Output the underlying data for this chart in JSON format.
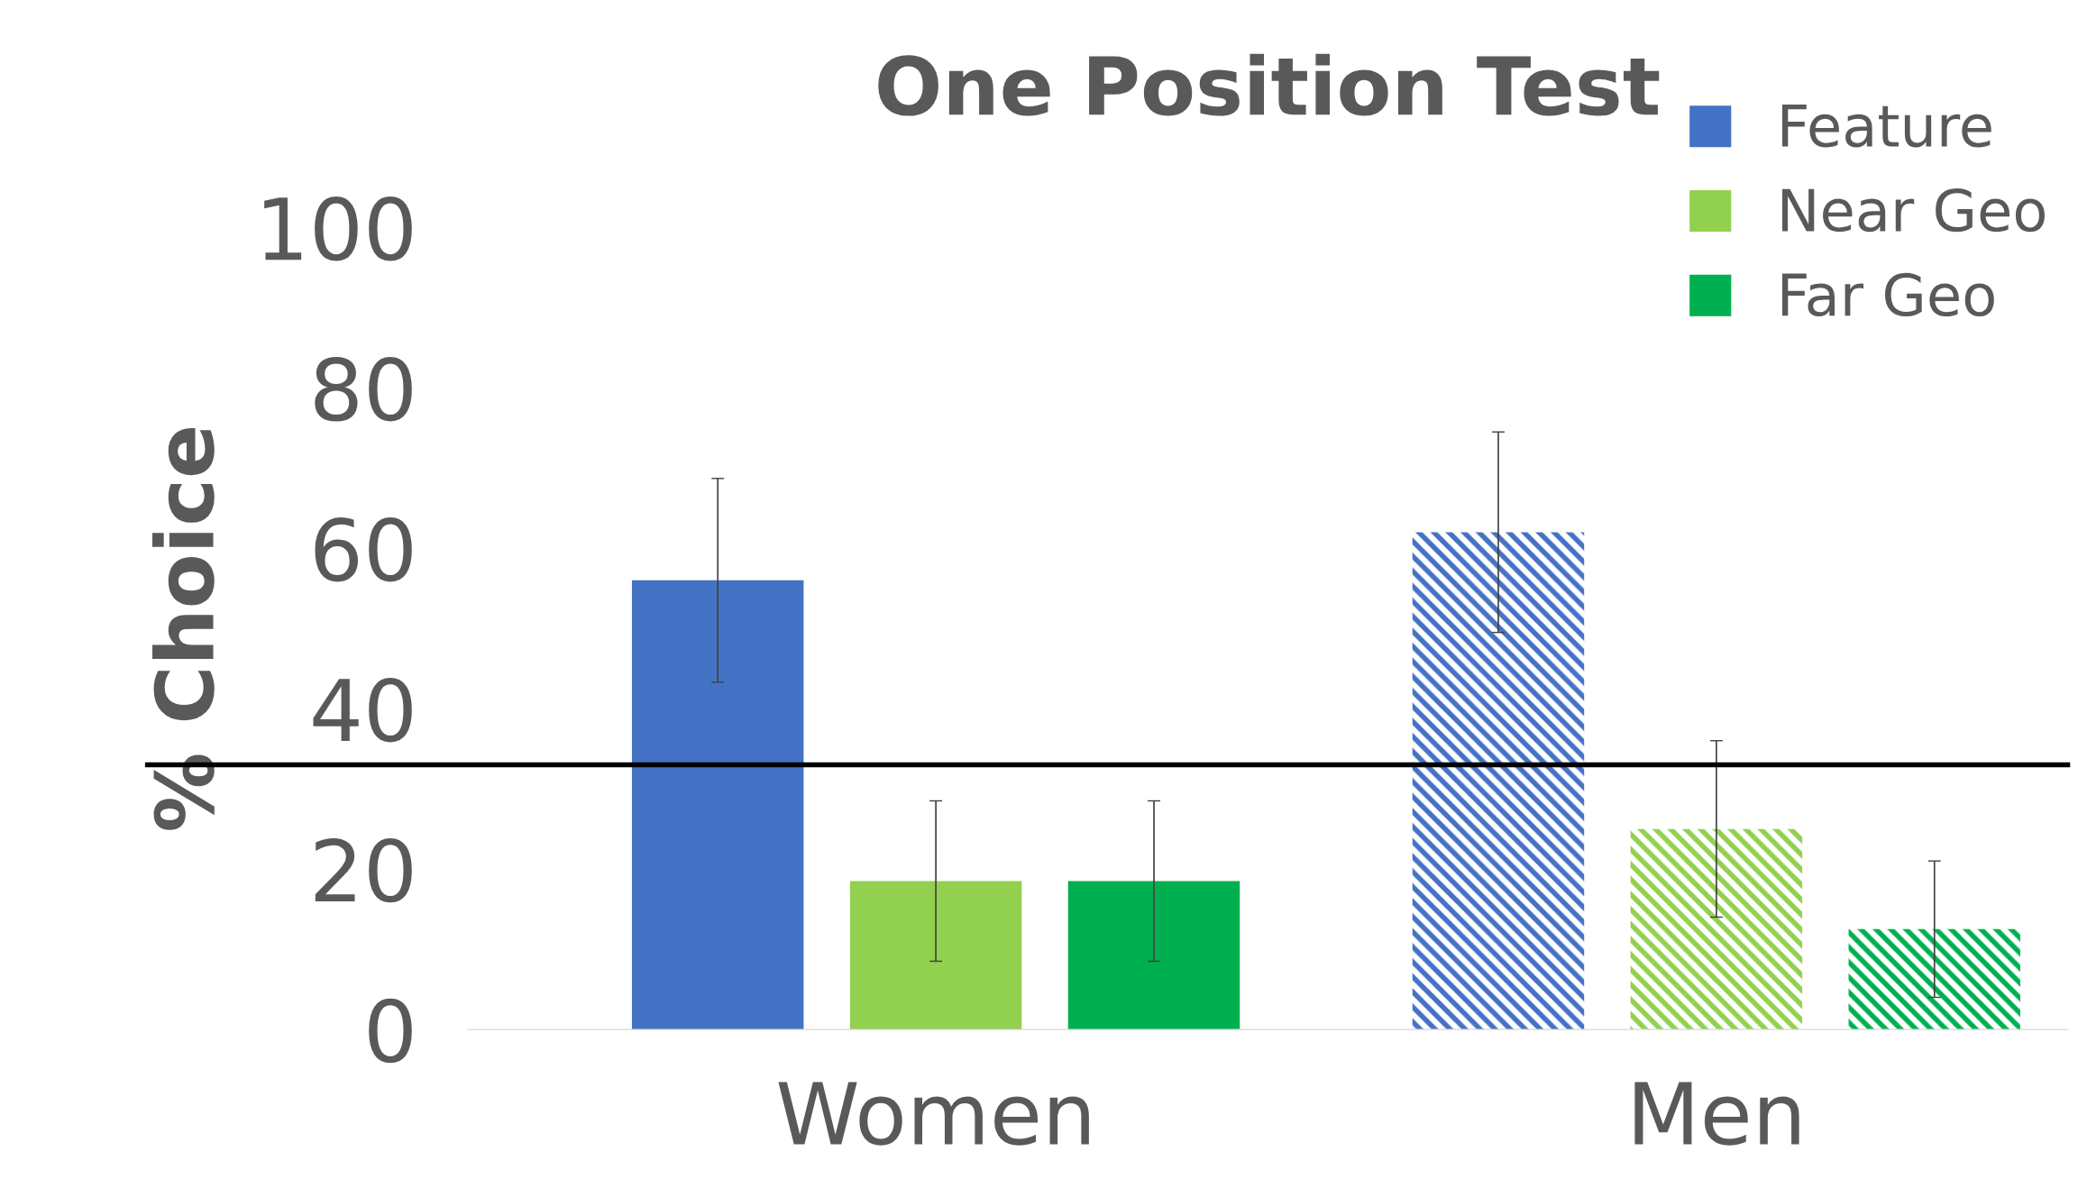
{
  "chart_data": {
    "type": "bar",
    "title": "One Position Test",
    "ylabel": "% Choice",
    "categories": [
      "Women",
      "Men"
    ],
    "series": [
      {
        "name": "Feature",
        "color": "#4472c4",
        "values": [
          56,
          62
        ],
        "errors": [
          12.7,
          12.5
        ]
      },
      {
        "name": "Near Geo",
        "color": "#92d050",
        "values": [
          18.5,
          25
        ],
        "errors": [
          10,
          11
        ]
      },
      {
        "name": "Far Geo",
        "color": "#00b050",
        "values": [
          18.5,
          12.5
        ],
        "errors": [
          10,
          8.5
        ]
      }
    ],
    "ylim": [
      0,
      100
    ],
    "yticks": [
      0,
      20,
      40,
      60,
      80,
      100
    ],
    "grid": false,
    "legend": "top right",
    "ref_lines": [
      {
        "axis": "y",
        "value": 33,
        "color": "#000000"
      }
    ]
  }
}
